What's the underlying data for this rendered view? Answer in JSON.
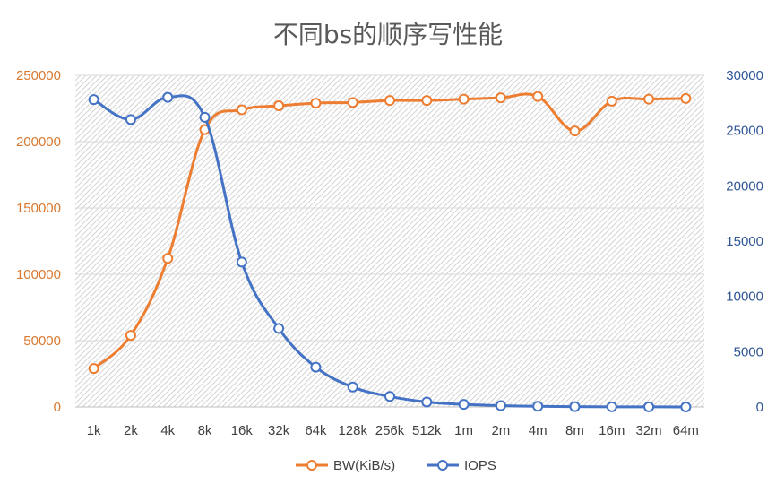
{
  "chart_data": {
    "type": "line",
    "title": "不同bs的顺序写性能",
    "categories": [
      "1k",
      "2k",
      "4k",
      "8k",
      "16k",
      "32k",
      "64k",
      "128k",
      "256k",
      "512k",
      "1m",
      "2m",
      "4m",
      "8m",
      "16m",
      "32m",
      "64m"
    ],
    "series": [
      {
        "name": "BW(KiB/s)",
        "axis": "left",
        "color": "#ed7d31",
        "values": [
          29000,
          54000,
          112000,
          209000,
          224000,
          227000,
          229000,
          229500,
          231000,
          231000,
          232000,
          233000,
          234000,
          208000,
          230500,
          232000,
          232500
        ]
      },
      {
        "name": "IOPS",
        "axis": "right",
        "color": "#4472c4",
        "values": [
          27800,
          26000,
          28000,
          26200,
          13100,
          7100,
          3600,
          1800,
          950,
          450,
          230,
          120,
          60,
          30,
          15,
          8,
          4
        ]
      }
    ],
    "y_left": {
      "min": 0,
      "max": 250000,
      "ticks": [
        0,
        50000,
        100000,
        150000,
        200000,
        250000
      ],
      "color": "#d9782f"
    },
    "y_right": {
      "min": 0,
      "max": 30000,
      "ticks": [
        0,
        5000,
        10000,
        15000,
        20000,
        25000,
        30000
      ],
      "color": "#2f5597"
    },
    "grid": true,
    "legend_position": "bottom"
  }
}
